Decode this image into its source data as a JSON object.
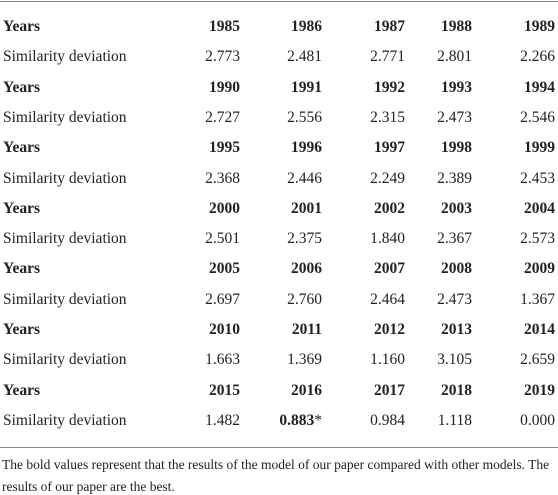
{
  "table": {
    "rows": [
      {
        "label": "Years",
        "cells": [
          "1985",
          "1986",
          "1987",
          "1988",
          "1989"
        ]
      },
      {
        "label": "Similarity deviation",
        "cells": [
          "2.773",
          "2.481",
          "2.771",
          "2.801",
          "2.266"
        ]
      },
      {
        "label": "Years",
        "cells": [
          "1990",
          "1991",
          "1992",
          "1993",
          "1994"
        ]
      },
      {
        "label": "Similarity deviation",
        "cells": [
          "2.727",
          "2.556",
          "2.315",
          "2.473",
          "2.546"
        ]
      },
      {
        "label": "Years",
        "cells": [
          "1995",
          "1996",
          "1997",
          "1998",
          "1999"
        ]
      },
      {
        "label": "Similarity deviation",
        "cells": [
          "2.368",
          "2.446",
          "2.249",
          "2.389",
          "2.453"
        ]
      },
      {
        "label": "Years",
        "cells": [
          "2000",
          "2001",
          "2002",
          "2003",
          "2004"
        ]
      },
      {
        "label": "Similarity deviation",
        "cells": [
          "2.501",
          "2.375",
          "1.840",
          "2.367",
          "2.573"
        ]
      },
      {
        "label": "Years",
        "cells": [
          "2005",
          "2006",
          "2007",
          "2008",
          "2009"
        ]
      },
      {
        "label": "Similarity deviation",
        "cells": [
          "2.697",
          "2.760",
          "2.464",
          "2.473",
          "1.367"
        ]
      },
      {
        "label": "Years",
        "cells": [
          "2010",
          "2011",
          "2012",
          "2013",
          "2014"
        ]
      },
      {
        "label": "Similarity deviation",
        "cells": [
          "1.663",
          "1.369",
          "1.160",
          "3.105",
          "2.659"
        ]
      },
      {
        "label": "Years",
        "cells": [
          "2015",
          "2016",
          "2017",
          "2018",
          "2019"
        ]
      },
      {
        "label": "Similarity deviation",
        "cells": [
          "1.482",
          {
            "text": "0.883",
            "mark": "*",
            "bold": true
          },
          "0.984",
          "1.118",
          "0.000"
        ]
      }
    ]
  },
  "footnote": "The bold values represent that the results of the model of our paper compared with other models. The results of our paper are the best."
}
